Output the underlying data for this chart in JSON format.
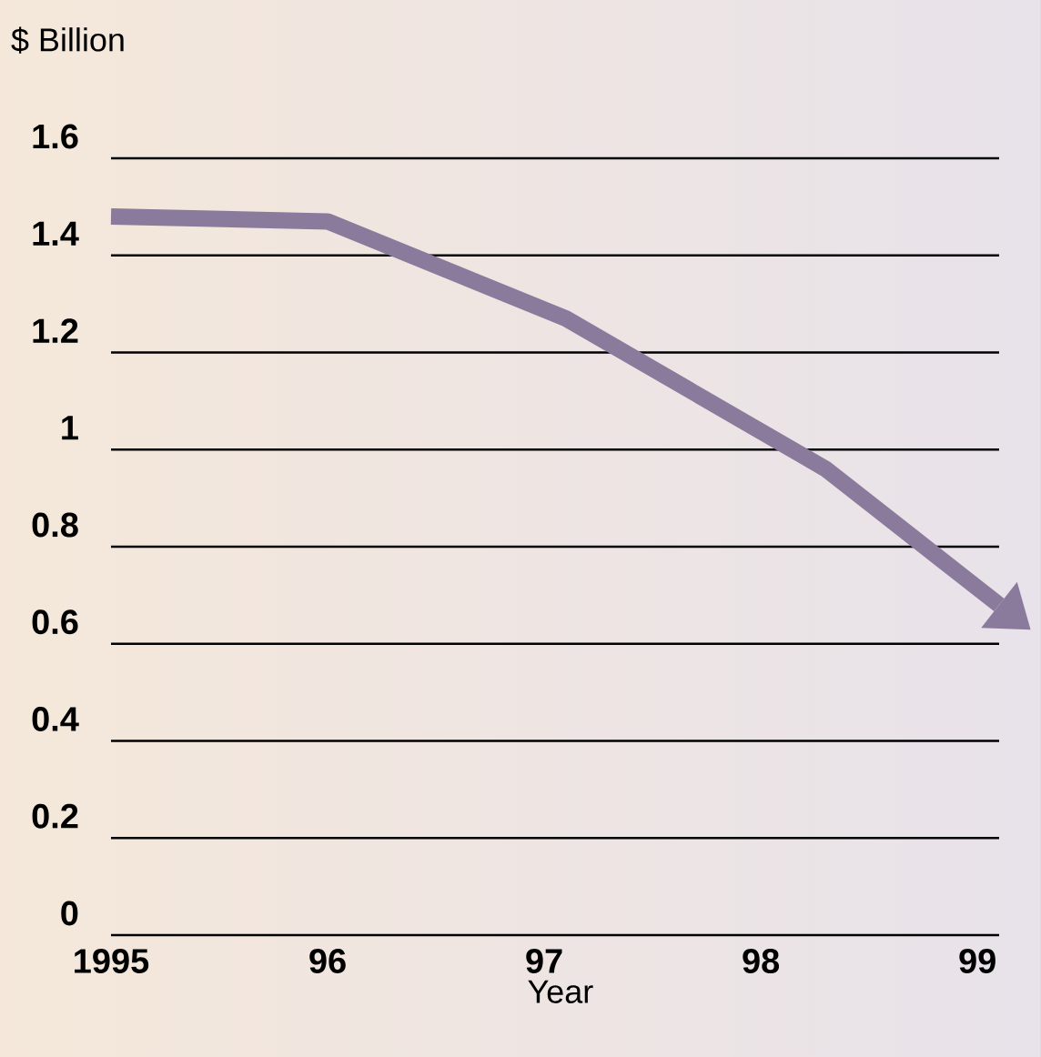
{
  "chart_data": {
    "type": "line",
    "xlabel": "Year",
    "ylabel": "$ Billion",
    "x": [
      1995,
      1996,
      1997.1,
      1998.3,
      1999.1
    ],
    "series": [
      {
        "color": "#8a7a9c",
        "values": [
          1.48,
          1.47,
          1.27,
          0.96,
          0.68
        ]
      }
    ],
    "xlim": [
      1995,
      1999.1
    ],
    "ylim": [
      0,
      1.6
    ],
    "xticks": [
      {
        "value": 1995,
        "label": "1995"
      },
      {
        "value": 1996,
        "label": "96"
      },
      {
        "value": 1997,
        "label": "97"
      },
      {
        "value": 1998,
        "label": "98"
      },
      {
        "value": 1999,
        "label": "99"
      }
    ],
    "yticks": [
      0,
      0.2,
      0.4,
      0.6,
      0.8,
      1,
      1.2,
      1.4,
      1.6
    ],
    "grid": "y",
    "marker": "none",
    "line_style": "solid"
  }
}
